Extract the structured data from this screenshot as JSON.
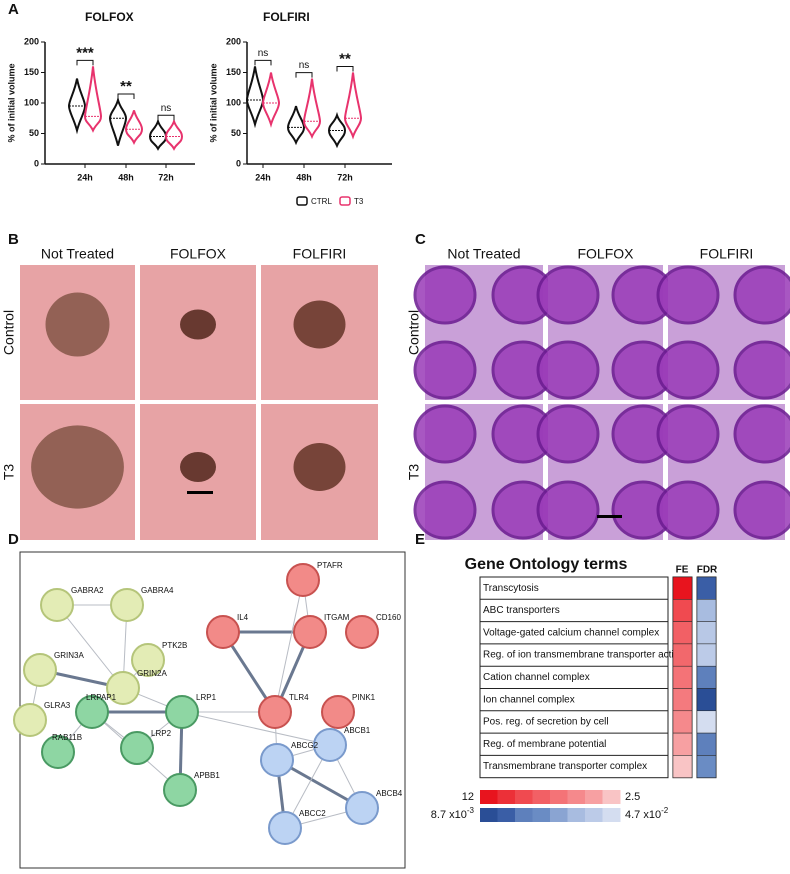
{
  "panel_a": {
    "label": "A",
    "charts": [
      {
        "type": "violin",
        "title": "FOLFOX",
        "ylabel": "% of initial volume",
        "categories": [
          "24h",
          "48h",
          "72h"
        ],
        "ylim": [
          0,
          200
        ],
        "yticks": [
          0,
          50,
          100,
          150,
          200
        ],
        "series": [
          {
            "name": "CTRL",
            "color": "#111111",
            "values": [
              95,
              75,
              45
            ],
            "min": [
              55,
              30,
              25
            ],
            "max": [
              140,
              105,
              70
            ]
          },
          {
            "name": "T3",
            "color": "#e8336d",
            "values": [
              78,
              57,
              45
            ],
            "min": [
              55,
              35,
              25
            ],
            "max": [
              160,
              88,
              70
            ]
          }
        ],
        "annotations": [
          "***",
          "**",
          "ns"
        ]
      },
      {
        "type": "violin",
        "title": "FOLFIRI",
        "ylabel": "% of initial volume",
        "categories": [
          "24h",
          "48h",
          "72h"
        ],
        "ylim": [
          0,
          200
        ],
        "yticks": [
          0,
          50,
          100,
          150,
          200
        ],
        "series": [
          {
            "name": "CTRL",
            "color": "#111111",
            "values": [
              105,
              60,
              55
            ],
            "min": [
              65,
              35,
              30
            ],
            "max": [
              160,
              95,
              80
            ]
          },
          {
            "name": "T3",
            "color": "#e8336d",
            "values": [
              100,
              70,
              75
            ],
            "min": [
              65,
              45,
              45
            ],
            "max": [
              150,
              140,
              150
            ]
          }
        ],
        "annotations": [
          "ns",
          "ns",
          "**"
        ]
      }
    ]
  },
  "panel_b": {
    "label": "B",
    "columns": [
      "Not Treated",
      "FOLFOX",
      "FOLFIRI"
    ],
    "rows": [
      "Control",
      "T3"
    ]
  },
  "panel_c": {
    "label": "C",
    "columns": [
      "Not Treated",
      "FOLFOX",
      "FOLFIRI"
    ],
    "rows": [
      "Control",
      "T3"
    ]
  },
  "panel_d": {
    "label": "D",
    "nodes": [
      "GABRA2",
      "GABRA4",
      "PTK2B",
      "GRIN3A",
      "GRIN2A",
      "GLRA3",
      "IL4",
      "PTAFR",
      "ITGAM",
      "CD160",
      "LRP1",
      "TLR4",
      "PINK1",
      "LRPAP1",
      "LRP2",
      "RAB11B",
      "APBB1",
      "ABCB1",
      "ABCG2",
      "ABCB4",
      "ABCC2"
    ]
  },
  "panel_e": {
    "label": "E",
    "title": "Gene Ontology terms",
    "columns": [
      "FE",
      "FDR"
    ],
    "terms": [
      "Transcytosis",
      "ABC transporters",
      "Voltage-gated calcium channel complex",
      "Reg. of ion transmembrane transporter activity",
      "Cation channel complex",
      "Ion channel complex",
      "Pos. reg. of secretion by cell",
      "Reg. of membrane potential",
      "Transmembrane transporter complex"
    ],
    "fe_colors": [
      "#e8141e",
      "#f04a50",
      "#f26065",
      "#f2686c",
      "#f47377",
      "#f47a7e",
      "#f5898c",
      "#f7a0a2",
      "#f9c4c5"
    ],
    "fdr_colors": [
      "#3a5ea6",
      "#a8bce0",
      "#b8c8e6",
      "#bccbe8",
      "#5e80bc",
      "#2a4e96",
      "#d4ddf0",
      "#5e80bc",
      "#6a8cc4"
    ],
    "fe_legend": {
      "high": "12",
      "low": "2.5",
      "colors": [
        "#e8141e",
        "#ec3038",
        "#f04a50",
        "#f26065",
        "#f47377",
        "#f5898c",
        "#f7a0a2",
        "#f9c4c5"
      ]
    },
    "fdr_legend": {
      "high": {
        "base": "8.7 x10",
        "exp": "-3"
      },
      "low": {
        "base": "4.7 x10",
        "exp": "-2"
      },
      "colors": [
        "#2a4e96",
        "#3a5ea6",
        "#5e80bc",
        "#6a8cc4",
        "#8aa4d2",
        "#a8bce0",
        "#bccbe8",
        "#d4ddf0"
      ]
    }
  }
}
